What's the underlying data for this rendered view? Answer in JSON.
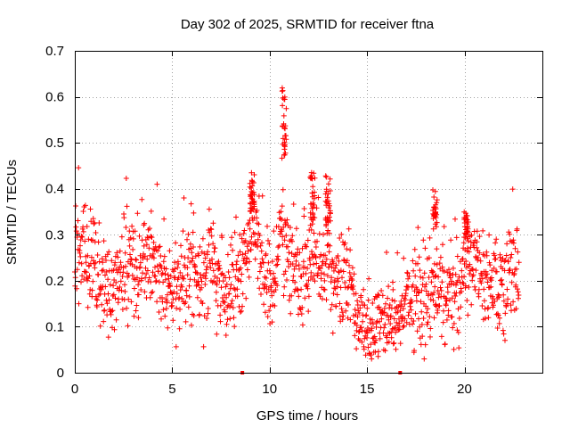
{
  "chart_data": {
    "type": "scatter",
    "title": "Day 302 of 2025, SRMTID for receiver ftna",
    "xlabel": "GPS time / hours",
    "ylabel": "SRMTID / TECUs",
    "xlim": [
      0,
      24
    ],
    "ylim": [
      0,
      0.7
    ],
    "xticks": [
      0,
      5,
      10,
      15,
      20
    ],
    "xtick_labels": [
      "0",
      "5",
      "10",
      "15",
      "20"
    ],
    "yticks": [
      0,
      0.1,
      0.2,
      0.3,
      0.4,
      0.5,
      0.6,
      0.7
    ],
    "ytick_labels": [
      "0",
      "0.1",
      "0.2",
      "0.3",
      "0.4",
      "0.5",
      "0.6",
      "0.7"
    ],
    "grid": true,
    "marker": "+",
    "color": "#ff0000",
    "time_range_hours": [
      0,
      22.8
    ],
    "sample_step_hours": 0.016,
    "trend_points": [
      [
        0.0,
        0.25
      ],
      [
        0.5,
        0.24
      ],
      [
        1.0,
        0.22
      ],
      [
        1.5,
        0.17
      ],
      [
        2.0,
        0.18
      ],
      [
        2.5,
        0.23
      ],
      [
        3.0,
        0.24
      ],
      [
        3.5,
        0.22
      ],
      [
        4.0,
        0.24
      ],
      [
        4.5,
        0.21
      ],
      [
        5.0,
        0.16
      ],
      [
        5.5,
        0.2
      ],
      [
        6.0,
        0.22
      ],
      [
        6.5,
        0.19
      ],
      [
        7.0,
        0.24
      ],
      [
        7.5,
        0.2
      ],
      [
        8.0,
        0.19
      ],
      [
        8.5,
        0.22
      ],
      [
        9.0,
        0.27
      ],
      [
        9.3,
        0.3
      ],
      [
        9.6,
        0.23
      ],
      [
        10.0,
        0.19
      ],
      [
        10.3,
        0.22
      ],
      [
        10.6,
        0.32
      ],
      [
        10.8,
        0.3
      ],
      [
        11.0,
        0.24
      ],
      [
        11.5,
        0.22
      ],
      [
        12.0,
        0.22
      ],
      [
        12.3,
        0.26
      ],
      [
        12.6,
        0.22
      ],
      [
        13.0,
        0.24
      ],
      [
        13.5,
        0.2
      ],
      [
        14.0,
        0.19
      ],
      [
        14.5,
        0.12
      ],
      [
        15.0,
        0.08
      ],
      [
        15.5,
        0.1
      ],
      [
        16.0,
        0.12
      ],
      [
        16.5,
        0.11
      ],
      [
        17.0,
        0.15
      ],
      [
        17.5,
        0.17
      ],
      [
        18.0,
        0.15
      ],
      [
        18.5,
        0.2
      ],
      [
        19.0,
        0.17
      ],
      [
        19.5,
        0.14
      ],
      [
        20.0,
        0.22
      ],
      [
        20.5,
        0.22
      ],
      [
        21.0,
        0.19
      ],
      [
        21.5,
        0.2
      ],
      [
        22.0,
        0.2
      ],
      [
        22.5,
        0.22
      ],
      [
        22.8,
        0.21
      ]
    ],
    "spikes": [
      {
        "x": 9.1,
        "y_min": 0.34,
        "y_max": 0.44
      },
      {
        "x": 10.75,
        "y_min": 0.45,
        "y_max": 0.62
      },
      {
        "x": 12.2,
        "y_min": 0.33,
        "y_max": 0.44
      },
      {
        "x": 13.0,
        "y_min": 0.32,
        "y_max": 0.43
      },
      {
        "x": 18.5,
        "y_min": 0.31,
        "y_max": 0.4
      },
      {
        "x": 20.1,
        "y_min": 0.29,
        "y_max": 0.35
      }
    ],
    "zero_markers": [
      8.6,
      16.7
    ]
  }
}
